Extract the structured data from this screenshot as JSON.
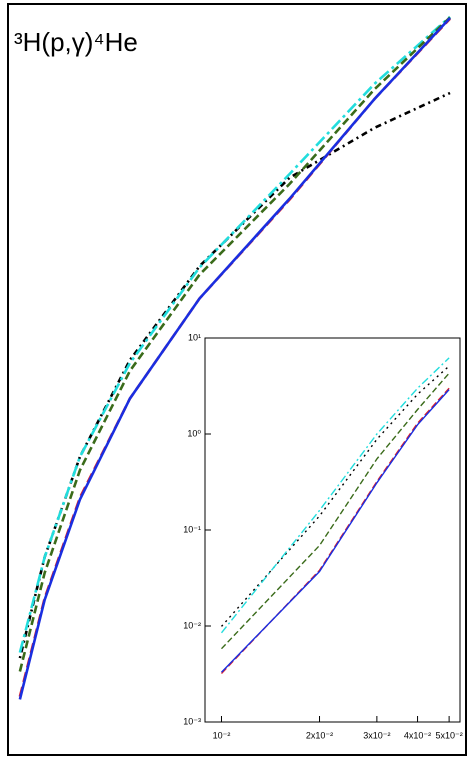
{
  "chart_data": [
    {
      "type": "line",
      "title": "³H(p,γ)⁴He",
      "xscale": "log",
      "yscale": "log",
      "xlim": [
        0.01,
        6
      ],
      "ylim": [
        0.001,
        10000
      ],
      "x": [
        0.0118,
        0.0167,
        0.0273,
        0.0549,
        0.145,
        0.51,
        1.67,
        4.8
      ],
      "series": [
        {
          "color": "#000000",
          "dash": "2,4,6,4",
          "values": [
            0.008,
            0.07,
            0.6,
            4.8,
            36,
            240,
            700,
            1480
          ]
        },
        {
          "color": "#22dddd",
          "dash": "12,4,3,4",
          "values": [
            0.009,
            0.07,
            0.6,
            4.5,
            35,
            260,
            1800,
            7600
          ]
        },
        {
          "color": "#3a6b1a",
          "dash": "8,4",
          "values": [
            0.006,
            0.05,
            0.45,
            3.8,
            30,
            210,
            1600,
            7500
          ]
        },
        {
          "color": "#e0202a",
          "dash": "10,5",
          "values": [
            0.0035,
            0.029,
            0.25,
            2.1,
            18,
            150,
            1300,
            7300
          ]
        },
        {
          "color": "#1a2ee0",
          "dash": "none",
          "values": [
            0.0033,
            0.028,
            0.24,
            2.1,
            18,
            153,
            1300,
            7400
          ]
        }
      ]
    },
    {
      "type": "line",
      "xscale": "log",
      "yscale": "log",
      "xlim": [
        0.0089,
        0.054
      ],
      "ylim": [
        0.001,
        10
      ],
      "xticks": [
        {
          "value": 0.01,
          "label": "10⁻²"
        },
        {
          "value": 0.02,
          "label": "2x10⁻²"
        },
        {
          "value": 0.03,
          "label": "3x10⁻²"
        },
        {
          "value": 0.04,
          "label": "4x10⁻²"
        },
        {
          "value": 0.05,
          "label": "5x10⁻²"
        }
      ],
      "yticks": [
        {
          "value": 0.001,
          "label": "10⁻³"
        },
        {
          "value": 0.01,
          "label": "10⁻²"
        },
        {
          "value": 0.1,
          "label": "10⁻¹"
        },
        {
          "value": 1,
          "label": "10⁰"
        },
        {
          "value": 10,
          "label": "10¹"
        }
      ],
      "x": [
        0.01,
        0.02,
        0.03,
        0.04,
        0.05
      ],
      "series": [
        {
          "color": "#000000",
          "dash": "2,4",
          "values": [
            0.0099,
            0.14,
            0.88,
            2.6,
            5.1
          ]
        },
        {
          "color": "#22dddd",
          "dash": "8,3,2,3",
          "values": [
            0.0085,
            0.16,
            1.0,
            3.0,
            6.2
          ]
        },
        {
          "color": "#3a6b1a",
          "dash": "6,3",
          "values": [
            0.0058,
            0.069,
            0.55,
            1.8,
            4.3
          ]
        },
        {
          "color": "#e0202a",
          "dash": "7,3",
          "values": [
            0.0032,
            0.038,
            0.32,
            1.3,
            3.0
          ]
        },
        {
          "color": "#1a2ee0",
          "dash": "none",
          "values": [
            0.0033,
            0.037,
            0.31,
            1.25,
            2.9
          ]
        }
      ]
    }
  ]
}
